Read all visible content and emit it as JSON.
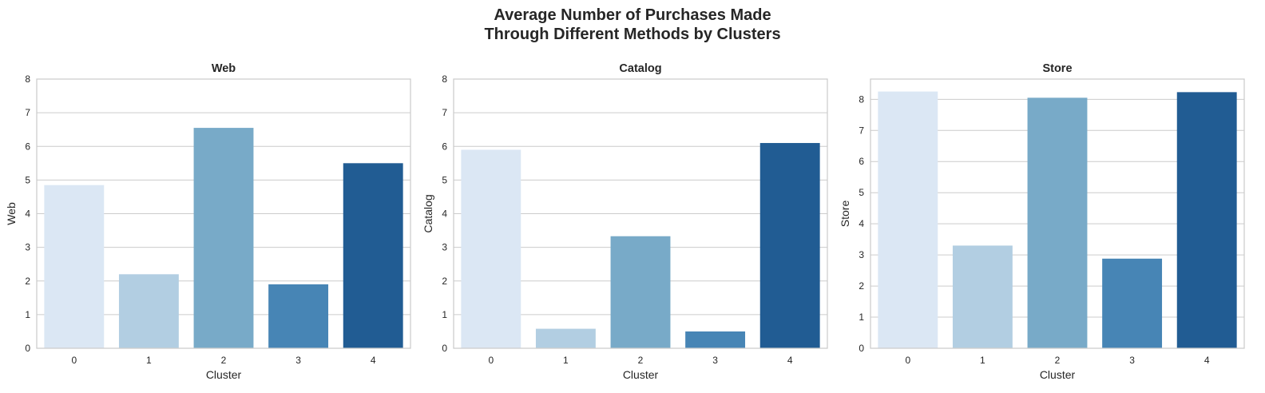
{
  "figure": {
    "title_line1": "Average Number of Purchases Made",
    "title_line2": "Through Different Methods by Clusters"
  },
  "chart_data": [
    {
      "type": "bar",
      "title": "Web",
      "xlabel": "Cluster",
      "ylabel": "Web",
      "categories": [
        "0",
        "1",
        "2",
        "3",
        "4"
      ],
      "values": [
        4.85,
        2.2,
        6.55,
        1.9,
        5.5
      ],
      "colors": [
        "#dbe7f4",
        "#b2cee2",
        "#78aac8",
        "#4785b5",
        "#215c93"
      ],
      "ylim": [
        0,
        8
      ],
      "yticks": [
        0,
        1,
        2,
        3,
        4,
        5,
        6,
        7,
        8
      ],
      "grid": "horizontal"
    },
    {
      "type": "bar",
      "title": "Catalog",
      "xlabel": "Cluster",
      "ylabel": "Catalog",
      "categories": [
        "0",
        "1",
        "2",
        "3",
        "4"
      ],
      "values": [
        5.9,
        0.58,
        3.33,
        0.5,
        6.1
      ],
      "colors": [
        "#dbe7f4",
        "#b2cee2",
        "#78aac8",
        "#4785b5",
        "#215c93"
      ],
      "ylim": [
        0,
        8
      ],
      "yticks": [
        0,
        1,
        2,
        3,
        4,
        5,
        6,
        7,
        8
      ],
      "grid": "horizontal"
    },
    {
      "type": "bar",
      "title": "Store",
      "xlabel": "Cluster",
      "ylabel": "Store",
      "categories": [
        "0",
        "1",
        "2",
        "3",
        "4"
      ],
      "values": [
        8.25,
        3.3,
        8.05,
        2.88,
        8.23
      ],
      "colors": [
        "#dbe7f4",
        "#b2cee2",
        "#78aac8",
        "#4785b5",
        "#215c93"
      ],
      "ylim": [
        0,
        8.65
      ],
      "yticks": [
        0,
        1,
        2,
        3,
        4,
        5,
        6,
        7,
        8
      ],
      "grid": "horizontal"
    }
  ]
}
